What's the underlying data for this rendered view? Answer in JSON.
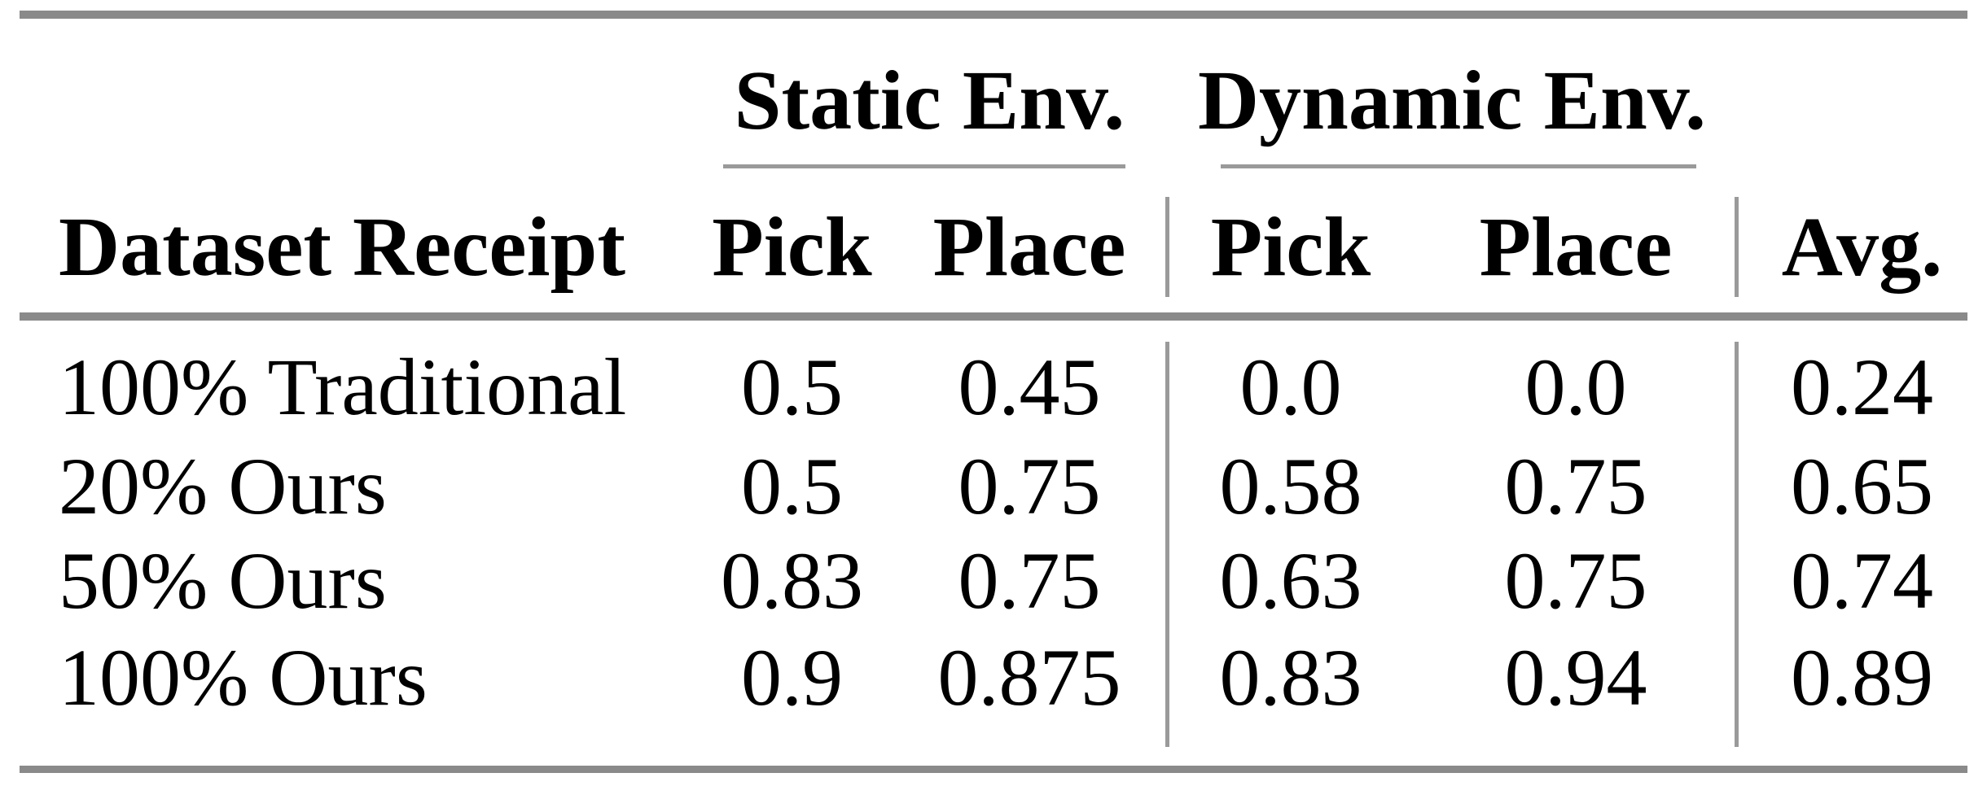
{
  "table": {
    "col_groups": [
      {
        "label": "Static Env.",
        "columns": [
          "Pick",
          "Place"
        ]
      },
      {
        "label": "Dynamic Env.",
        "columns": [
          "Pick",
          "Place"
        ]
      }
    ],
    "header": {
      "label_col": "Dataset Receipt",
      "static_pick": "Pick",
      "static_place": "Place",
      "dynamic_pick": "Pick",
      "dynamic_place": "Place",
      "avg": "Avg."
    },
    "rows": [
      {
        "label": "100% Traditional",
        "cells": [
          "0.5",
          "0.45",
          "0.0",
          "0.0",
          "0.24"
        ]
      },
      {
        "label": "20% Ours",
        "cells": [
          "0.5",
          "0.75",
          "0.58",
          "0.75",
          "0.65"
        ]
      },
      {
        "label": "50% Ours",
        "cells": [
          "0.83",
          "0.75",
          "0.63",
          "0.75",
          "0.74"
        ]
      },
      {
        "label": "100% Ours",
        "cells": [
          "0.9",
          "0.875",
          "0.83",
          "0.94",
          "0.89"
        ]
      }
    ],
    "colors": {
      "rule_thick": "#8a8a8a",
      "rule_thin": "#9a9a9a",
      "text": "#000000",
      "background": "#ffffff"
    }
  },
  "chart_data": {
    "type": "table",
    "title": "",
    "columns": [
      "Dataset Receipt",
      "Static Env. Pick",
      "Static Env. Place",
      "Dynamic Env. Pick",
      "Dynamic Env. Place",
      "Avg."
    ],
    "rows": [
      [
        "100% Traditional",
        0.5,
        0.45,
        0.0,
        0.0,
        0.24
      ],
      [
        "20% Ours",
        0.5,
        0.75,
        0.58,
        0.75,
        0.65
      ],
      [
        "50% Ours",
        0.83,
        0.75,
        0.63,
        0.75,
        0.74
      ],
      [
        "100% Ours",
        0.9,
        0.875,
        0.83,
        0.94,
        0.89
      ]
    ]
  }
}
